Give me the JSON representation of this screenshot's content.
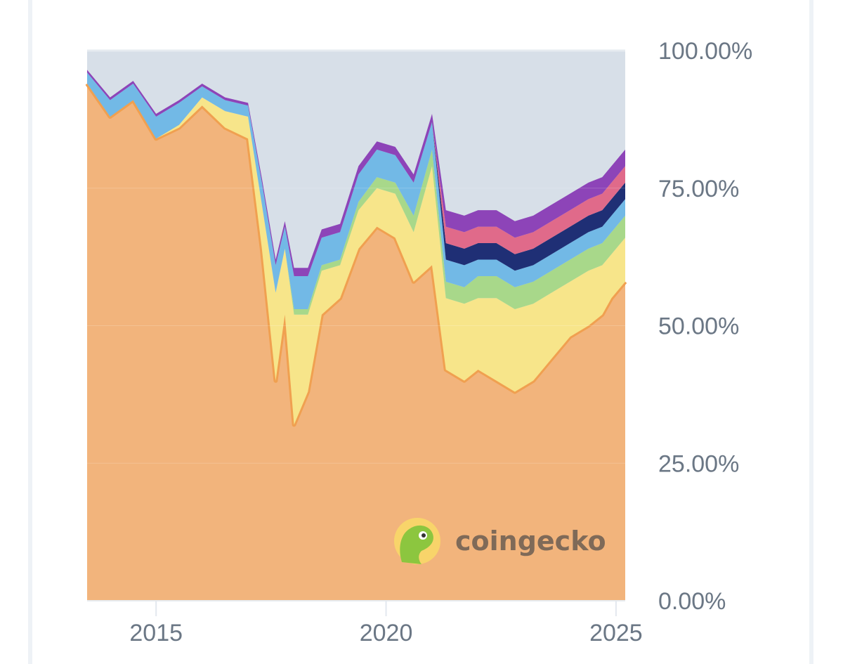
{
  "chart_data": {
    "type": "area",
    "stacked": true,
    "normalized": true,
    "title": "",
    "xlabel": "",
    "ylabel": "",
    "x": [
      2013.5,
      2014.0,
      2014.5,
      2015.0,
      2015.5,
      2016.0,
      2016.5,
      2017.0,
      2017.3,
      2017.6,
      2017.8,
      2018.0,
      2018.3,
      2018.6,
      2019.0,
      2019.4,
      2019.8,
      2020.2,
      2020.6,
      2021.0,
      2021.3,
      2021.7,
      2022.0,
      2022.4,
      2022.8,
      2023.2,
      2023.6,
      2024.0,
      2024.4,
      2024.7,
      2024.9,
      2025.2
    ],
    "xlim": [
      2013.5,
      2025.2
    ],
    "ylim": [
      0,
      100
    ],
    "x_ticks": [
      "2015",
      "2020",
      "2025"
    ],
    "x_tick_values": [
      2015,
      2020,
      2025
    ],
    "y_ticks": [
      "100.00%",
      "75.00%",
      "50.00%",
      "25.00%",
      "0.00%"
    ],
    "y_tick_values": [
      100,
      75,
      50,
      25,
      0
    ],
    "grid": true,
    "legend": "none",
    "series": [
      {
        "color": "#f2b47c",
        "values": [
          94,
          88,
          91,
          84,
          86,
          90,
          86,
          84,
          64,
          40,
          52,
          32,
          38,
          52,
          55,
          64,
          68,
          66,
          58,
          61,
          42,
          40,
          42,
          40,
          38,
          40,
          44,
          48,
          50,
          52,
          55,
          58
        ]
      },
      {
        "color": "#f7e58a",
        "values": [
          0,
          0,
          0,
          0,
          0.5,
          1.5,
          3,
          4,
          8,
          16,
          12,
          20,
          14,
          8,
          6,
          7,
          7,
          8,
          9,
          18,
          13,
          14,
          13,
          15,
          15,
          14,
          12,
          10,
          10,
          9,
          8,
          8
        ]
      },
      {
        "color": "#a8d88a",
        "values": [
          0,
          0,
          0,
          0,
          0,
          0,
          0,
          0,
          0,
          0,
          0,
          1,
          1,
          1,
          1,
          1.5,
          2,
          2,
          3,
          3,
          3,
          3,
          4,
          4,
          4,
          4,
          4,
          4,
          4,
          4,
          4,
          4
        ]
      },
      {
        "color": "#72b9e6",
        "values": [
          2,
          3,
          3,
          4,
          4,
          2,
          2,
          2,
          4,
          5,
          4,
          6,
          6,
          5,
          5,
          5,
          5,
          5,
          6,
          5,
          4,
          4,
          3,
          3,
          3,
          3,
          3,
          3,
          3,
          3,
          3,
          3
        ]
      },
      {
        "color": "#1f2f75",
        "values": [
          0,
          0,
          0,
          0,
          0,
          0,
          0,
          0,
          0,
          0,
          0,
          0,
          0,
          0,
          0,
          0,
          0,
          0,
          0,
          0,
          3,
          3,
          3,
          3,
          3,
          3,
          3,
          3,
          3,
          3,
          3,
          3
        ]
      },
      {
        "color": "#e06a8a",
        "values": [
          0,
          0,
          0,
          0,
          0,
          0,
          0,
          0,
          0,
          0,
          0,
          0,
          0,
          0,
          0,
          0,
          0,
          0,
          0,
          0,
          3,
          3,
          3,
          3,
          3,
          3,
          3,
          3,
          3,
          3,
          3,
          3
        ]
      },
      {
        "color": "#8d44b8",
        "values": [
          0.5,
          0.5,
          0.5,
          0.5,
          0.5,
          0.5,
          0.5,
          0.5,
          0.8,
          1,
          1,
          1.5,
          1.5,
          1.5,
          1.5,
          1.5,
          1.5,
          1.5,
          1.5,
          1.5,
          3,
          3,
          3,
          3,
          3,
          3,
          3,
          3,
          3,
          3,
          3,
          3
        ]
      }
    ]
  },
  "watermark": {
    "text": "coingecko",
    "logo_icon": "coingecko-gecko-icon",
    "colors": {
      "circle": "#f8d46a",
      "gecko": "#8cc63f",
      "text": "#7f6a58"
    }
  },
  "colors": {
    "plot_background": "#d7dfe8",
    "gridline": "#e6ebf0",
    "primary_line": "#f0a050",
    "tick_label": "#6b7785",
    "frame": "#eef2f6"
  }
}
